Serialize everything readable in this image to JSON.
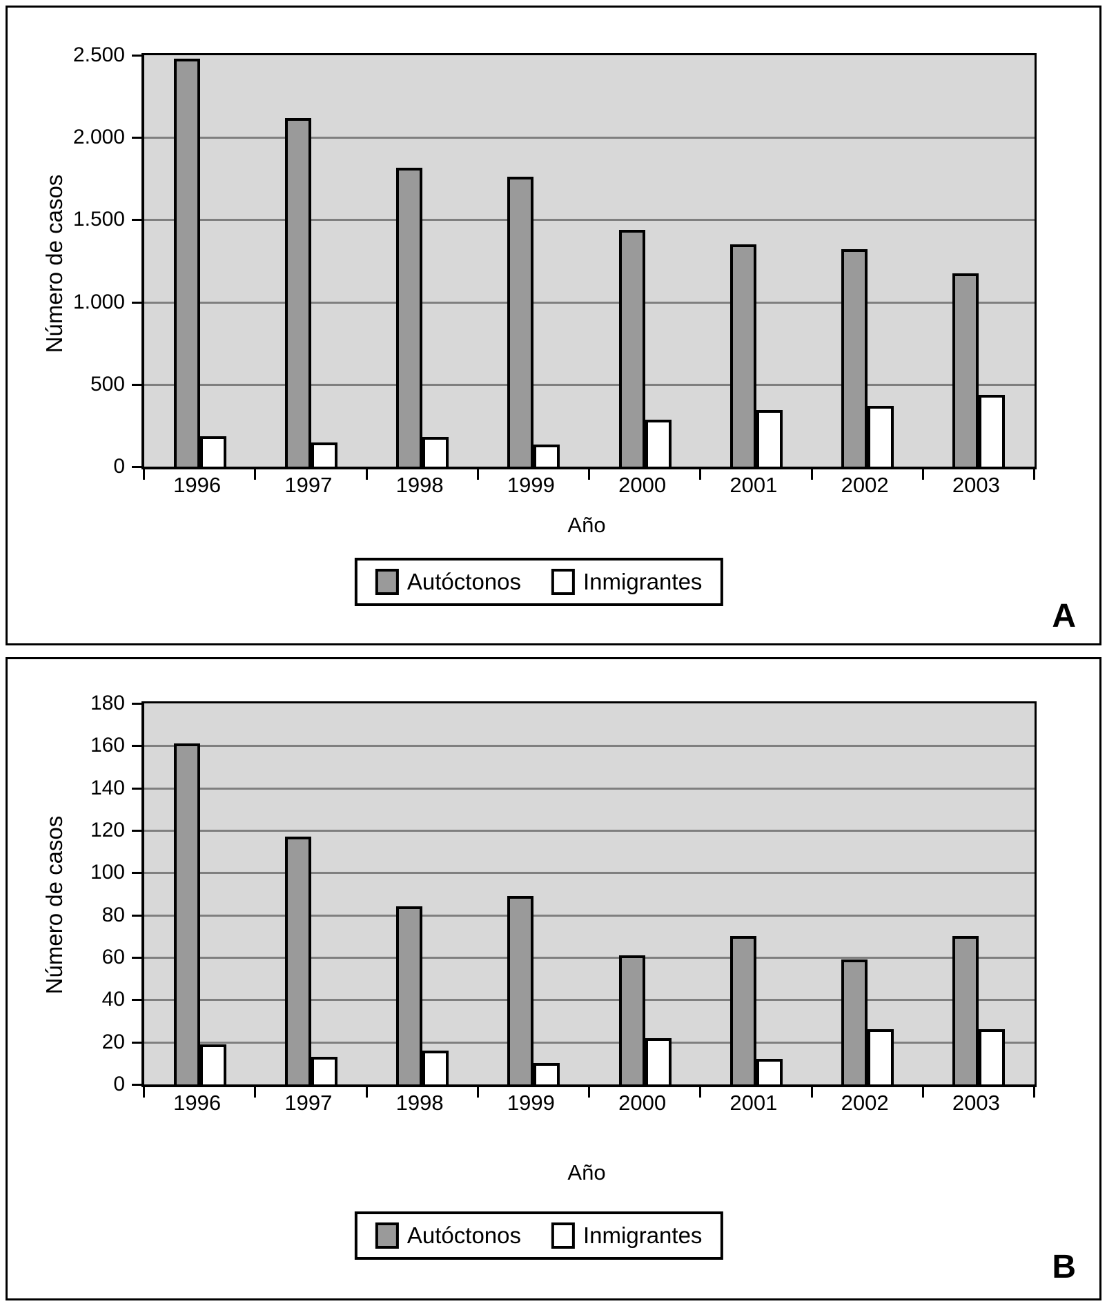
{
  "colors": {
    "bar_autoctonos": "#9a9a9a",
    "bar_inmigrantes": "#ffffff",
    "plot_background": "#d8d8d8",
    "gridline": "#7f7f7f",
    "axis": "#000000"
  },
  "legend": {
    "autoctonos": "Autóctonos",
    "inmigrantes": "Inmigrantes"
  },
  "chart_data": [
    {
      "type": "bar",
      "panel_label": "A",
      "xlabel": "Año",
      "ylabel": "Número de casos",
      "categories": [
        "1996",
        "1997",
        "1998",
        "1999",
        "2000",
        "2001",
        "2002",
        "2003"
      ],
      "series": [
        {
          "name": "Autóctonos",
          "color": "#9a9a9a",
          "values": [
            2480,
            2120,
            1815,
            1760,
            1440,
            1350,
            1320,
            1175
          ]
        },
        {
          "name": "Inmigrantes",
          "color": "#ffffff",
          "values": [
            185,
            145,
            180,
            135,
            285,
            345,
            370,
            435
          ]
        }
      ],
      "ylim": [
        0,
        2500
      ],
      "ytick_step": 500,
      "ytick_labels": [
        "0",
        "500",
        "1.000",
        "1.500",
        "2.000",
        "2.500"
      ],
      "grid": true,
      "legend_position": "bottom"
    },
    {
      "type": "bar",
      "panel_label": "B",
      "xlabel": "Año",
      "ylabel": "Número de casos",
      "categories": [
        "1996",
        "1997",
        "1998",
        "1999",
        "2000",
        "2001",
        "2002",
        "2003"
      ],
      "series": [
        {
          "name": "Autóctonos",
          "color": "#9a9a9a",
          "values": [
            161,
            117,
            84,
            89,
            61,
            70,
            59,
            70
          ]
        },
        {
          "name": "Inmigrantes",
          "color": "#ffffff",
          "values": [
            19,
            13,
            16,
            10,
            22,
            12,
            26,
            26
          ]
        }
      ],
      "ylim": [
        0,
        180
      ],
      "ytick_step": 20,
      "ytick_labels": [
        "0",
        "20",
        "40",
        "60",
        "80",
        "100",
        "120",
        "140",
        "160",
        "180"
      ],
      "grid": true,
      "legend_position": "bottom"
    }
  ]
}
